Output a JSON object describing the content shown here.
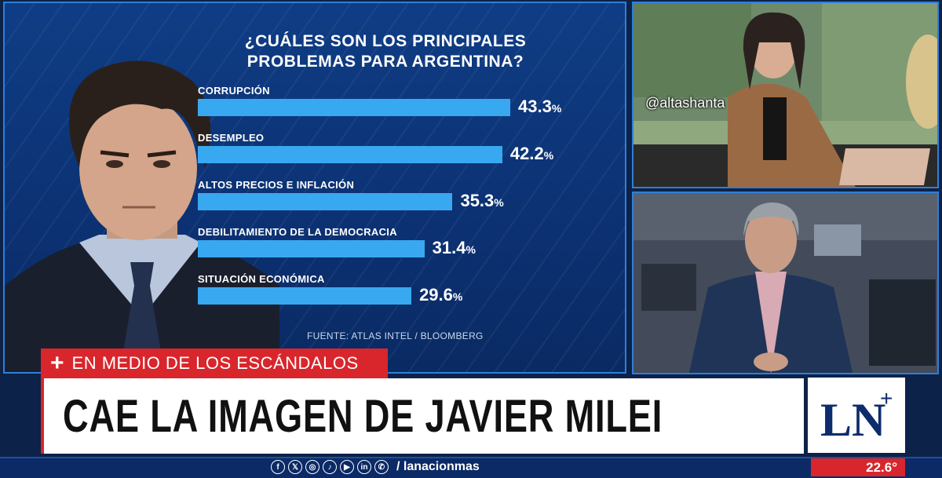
{
  "chart_data": {
    "type": "bar",
    "title": "¿CUÁLES SON LOS PRINCIPALES PROBLEMAS PARA ARGENTINA?",
    "title_lines": [
      "¿CUÁLES SON LOS PRINCIPALES",
      "PROBLEMAS PARA ARGENTINA?"
    ],
    "categories": [
      "CORRUPCIÓN",
      "DESEMPLEO",
      "ALTOS PRECIOS E INFLACIÓN",
      "DEBILITAMIENTO DE LA DEMOCRACIA",
      "SITUACIÓN ECONÓMICA"
    ],
    "values": [
      43.3,
      42.2,
      35.3,
      31.4,
      29.6
    ],
    "value_labels": [
      "43.3",
      "42.2",
      "35.3",
      "31.4",
      "29.6"
    ],
    "unit": "%",
    "orientation": "horizontal",
    "bar_color": "#38a8f0",
    "source": "FUENTE: ATLAS INTEL / BLOOMBERG"
  },
  "overlay": {
    "handle": "@altashanta"
  },
  "lower_third": {
    "tag_icon": "+",
    "tag": "EN MEDIO DE LOS ESCÁNDALOS",
    "headline": "CAE LA IMAGEN DE JAVIER MILEI",
    "accent_color": "#d8262c",
    "logo_text": "LN",
    "logo_plus": "+"
  },
  "ticker": {
    "social_icons": [
      "facebook-icon",
      "x-icon",
      "instagram-icon",
      "tiktok-icon",
      "youtube-icon",
      "linkedin-icon",
      "whatsapp-icon"
    ],
    "social_handle": "/ lanacionmas",
    "temperature": "22.6°"
  }
}
